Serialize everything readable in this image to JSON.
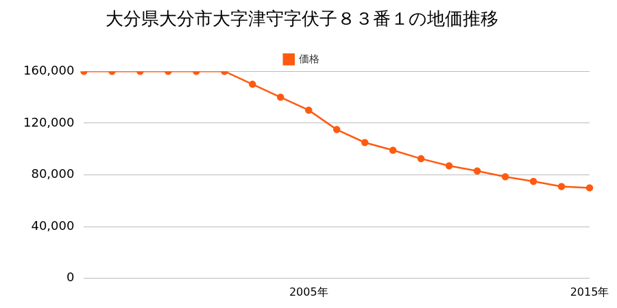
{
  "chart_data": {
    "type": "line",
    "title": "大分県大分市大字津守字伏子８３番１の地価推移",
    "categories": [
      null,
      null,
      null,
      null,
      null,
      null,
      null,
      null,
      "2005年",
      null,
      null,
      null,
      null,
      null,
      null,
      null,
      null,
      null,
      "2015年"
    ],
    "series": [
      {
        "name": "価格",
        "color": "#ff5a10",
        "marker": "circle",
        "line_style": "solid",
        "values": [
          160000,
          160000,
          160000,
          160000,
          160000,
          160000,
          150000,
          140000,
          130000,
          115000,
          105000,
          99000,
          92500,
          87000,
          83000,
          78500,
          75000,
          71000,
          70000
        ]
      }
    ],
    "ylim": [
      0,
      160000
    ],
    "yticks": [
      0,
      {
        "value": 40000,
        "label": "40,000"
      },
      {
        "value": 80000,
        "label": "80,000"
      },
      {
        "value": 120000,
        "label": "120,000"
      },
      {
        "value": 160000,
        "label": "160,000"
      }
    ],
    "grid": true,
    "legend": "top"
  }
}
